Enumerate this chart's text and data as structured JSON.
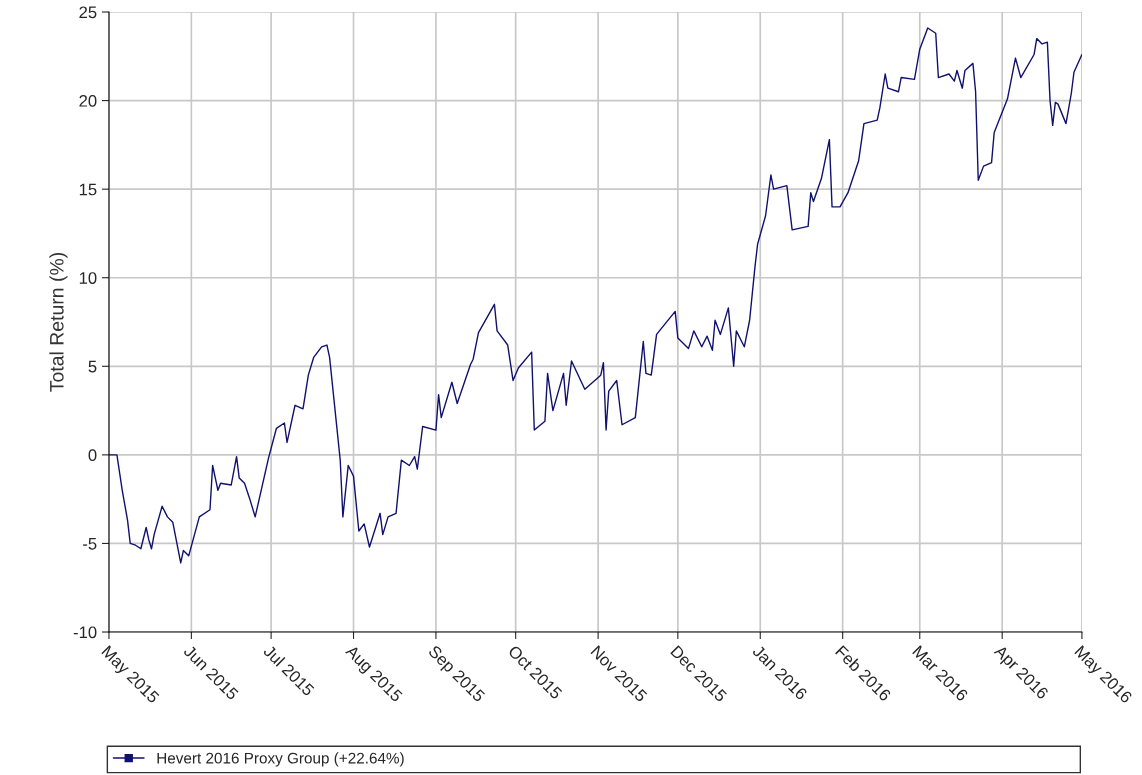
{
  "chart_data": {
    "type": "line",
    "ylabel": "Total Return (%)",
    "x": [
      "2015-05-01",
      "2015-05-04",
      "2015-05-06",
      "2015-05-08",
      "2015-05-09",
      "2015-05-11",
      "2015-05-13",
      "2015-05-15",
      "2015-05-16",
      "2015-05-17",
      "2015-05-18",
      "2015-05-21",
      "2015-05-23",
      "2015-05-25",
      "2015-05-28",
      "2015-05-29",
      "2015-05-31",
      "2015-06-04",
      "2015-06-08",
      "2015-06-09",
      "2015-06-11",
      "2015-06-12",
      "2015-06-16",
      "2015-06-18",
      "2015-06-19",
      "2015-06-21",
      "2015-06-23",
      "2015-06-25",
      "2015-06-30",
      "2015-07-03",
      "2015-07-06",
      "2015-07-07",
      "2015-07-10",
      "2015-07-13",
      "2015-07-15",
      "2015-07-17",
      "2015-07-20",
      "2015-07-22",
      "2015-07-23",
      "2015-07-27",
      "2015-07-28",
      "2015-07-30",
      "2015-08-01",
      "2015-08-03",
      "2015-08-05",
      "2015-08-07",
      "2015-08-11",
      "2015-08-12",
      "2015-08-14",
      "2015-08-17",
      "2015-08-19",
      "2015-08-22",
      "2015-08-24",
      "2015-08-25",
      "2015-08-27",
      "2015-09-01",
      "2015-09-02",
      "2015-09-03",
      "2015-09-07",
      "2015-09-09",
      "2015-09-14",
      "2015-09-15",
      "2015-09-17",
      "2015-09-23",
      "2015-09-24",
      "2015-09-28",
      "2015-09-30",
      "2015-10-02",
      "2015-10-07",
      "2015-10-08",
      "2015-10-12",
      "2015-10-13",
      "2015-10-15",
      "2015-10-19",
      "2015-10-20",
      "2015-10-22",
      "2015-10-27",
      "2015-11-02",
      "2015-11-03",
      "2015-11-04",
      "2015-11-05",
      "2015-11-08",
      "2015-11-10",
      "2015-11-15",
      "2015-11-18",
      "2015-11-19",
      "2015-11-21",
      "2015-11-23",
      "2015-11-30",
      "2015-12-01",
      "2015-12-05",
      "2015-12-07",
      "2015-12-10",
      "2015-12-12",
      "2015-12-14",
      "2015-12-15",
      "2015-12-17",
      "2015-12-20",
      "2015-12-22",
      "2015-12-23",
      "2015-12-26",
      "2015-12-28",
      "2015-12-30",
      "2015-12-31",
      "2016-01-03",
      "2016-01-05",
      "2016-01-06",
      "2016-01-11",
      "2016-01-13",
      "2016-01-19",
      "2016-01-20",
      "2016-01-21",
      "2016-01-24",
      "2016-01-27",
      "2016-01-28",
      "2016-01-31",
      "2016-02-03",
      "2016-02-07",
      "2016-02-09",
      "2016-02-14",
      "2016-02-15",
      "2016-02-17",
      "2016-02-18",
      "2016-02-22",
      "2016-02-23",
      "2016-02-28",
      "2016-03-01",
      "2016-03-04",
      "2016-03-07",
      "2016-03-08",
      "2016-03-12",
      "2016-03-14",
      "2016-03-15",
      "2016-03-17",
      "2016-03-18",
      "2016-03-21",
      "2016-03-22",
      "2016-03-23",
      "2016-03-25",
      "2016-03-28",
      "2016-03-29",
      "2016-04-03",
      "2016-04-06",
      "2016-04-08",
      "2016-04-13",
      "2016-04-14",
      "2016-04-16",
      "2016-04-18",
      "2016-04-19",
      "2016-04-20",
      "2016-04-21",
      "2016-04-22",
      "2016-04-25",
      "2016-04-27",
      "2016-04-28",
      "2016-05-01"
    ],
    "series": [
      {
        "name": "Hevert 2016 Proxy Group (+22.64%)",
        "color": "#10106e",
        "values": [
          0,
          0,
          -2,
          -3.7,
          -5,
          -5.1,
          -5.3,
          -4.1,
          -4.8,
          -5.3,
          -4.5,
          -2.9,
          -3.5,
          -3.8,
          -6.1,
          -5.4,
          -5.7,
          -3.5,
          -3.1,
          -0.6,
          -2,
          -1.6,
          -1.7,
          -0.1,
          -1.3,
          -1.6,
          -2.5,
          -3.5,
          -0.2,
          1.5,
          1.8,
          0.7,
          2.8,
          2.6,
          4.5,
          5.5,
          6.1,
          6.2,
          5.5,
          -0.3,
          -3.5,
          -0.6,
          -1.2,
          -4.3,
          -3.9,
          -5.2,
          -3.3,
          -4.5,
          -3.5,
          -3.3,
          -0.3,
          -0.6,
          -0.1,
          -0.8,
          1.6,
          1.4,
          3.4,
          2.1,
          4.1,
          2.9,
          5.1,
          5.4,
          6.9,
          8.5,
          7.0,
          6.2,
          4.2,
          4.9,
          5.8,
          1.4,
          1.9,
          4.6,
          2.5,
          4.6,
          2.8,
          5.3,
          3.7,
          4.5,
          5.2,
          1.4,
          3.6,
          4.2,
          1.7,
          2.1,
          6.4,
          4.6,
          4.5,
          6.8,
          8.1,
          6.6,
          6.0,
          7.0,
          6.1,
          6.7,
          5.9,
          7.6,
          6.8,
          8.3,
          5.0,
          7.0,
          6.1,
          7.6,
          10.6,
          11.9,
          13.5,
          15.8,
          15.0,
          15.2,
          12.7,
          12.9,
          14.8,
          14.3,
          15.6,
          17.8,
          14.0,
          14.0,
          14.8,
          16.6,
          18.7,
          18.9,
          19.6,
          21.5,
          20.7,
          20.5,
          21.3,
          21.2,
          22.9,
          24.1,
          23.8,
          21.3,
          21.5,
          21.1,
          21.7,
          20.7,
          21.7,
          22.1,
          20.5,
          15.5,
          16.3,
          16.5,
          18.2,
          20.1,
          22.4,
          21.3,
          22.6,
          23.5,
          23.2,
          23.3,
          20.0,
          18.6,
          19.9,
          19.8,
          18.7,
          20.4,
          21.6,
          22.6
        ]
      }
    ],
    "xlim": [
      "2015-05-01",
      "2016-05-01"
    ],
    "xticks": [
      {
        "value": "2015-05-01",
        "label": "May 2015"
      },
      {
        "value": "2015-06-01",
        "label": "Jun 2015"
      },
      {
        "value": "2015-07-01",
        "label": "Jul 2015"
      },
      {
        "value": "2015-08-01",
        "label": "Aug 2015"
      },
      {
        "value": "2015-09-01",
        "label": "Sep 2015"
      },
      {
        "value": "2015-10-01",
        "label": "Oct 2015"
      },
      {
        "value": "2015-11-01",
        "label": "Nov 2015"
      },
      {
        "value": "2015-12-01",
        "label": "Dec 2015"
      },
      {
        "value": "2016-01-01",
        "label": "Jan 2016"
      },
      {
        "value": "2016-02-01",
        "label": "Feb 2016"
      },
      {
        "value": "2016-03-01",
        "label": "Mar 2016"
      },
      {
        "value": "2016-04-01",
        "label": "Apr 2016"
      },
      {
        "value": "2016-05-01",
        "label": "May 2016"
      }
    ],
    "ylim": [
      -10,
      25
    ],
    "yticks": [
      -10,
      -5,
      0,
      5,
      10,
      15,
      20,
      25
    ],
    "grid": true,
    "legend": "bottom",
    "line_style": "solid"
  }
}
